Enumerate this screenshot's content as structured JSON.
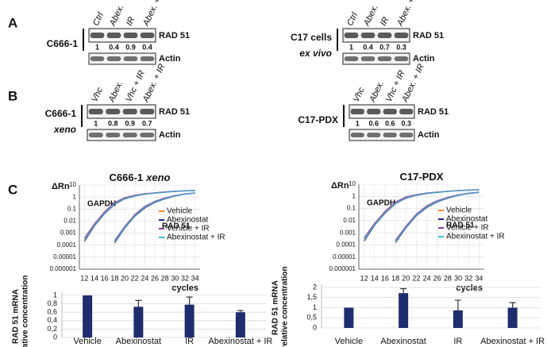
{
  "panel_letters": [
    "A",
    "B",
    "C"
  ],
  "blots": [
    {
      "cell_line": [
        "C666-1"
      ],
      "lanes": [
        "Ctrl",
        "Abex.",
        "IR",
        "Abex. + IR"
      ],
      "quant": [
        1,
        0.4,
        0.9,
        0.4
      ],
      "bands": [
        "RAD 51",
        "Actin"
      ]
    },
    {
      "cell_line": [
        "C17 cells",
        "ex vivo"
      ],
      "lanes": [
        "Ctrl",
        "Abex.",
        "IR",
        "Abex. + IR"
      ],
      "quant": [
        1,
        0.4,
        0.7,
        0.3
      ],
      "bands": [
        "RAD 51",
        "Actin"
      ]
    },
    {
      "cell_line": [
        "C666-1",
        "xeno"
      ],
      "lanes": [
        "Vhc",
        "Abex.",
        "Vhc + IR",
        "Abex. + IR"
      ],
      "quant": [
        1,
        0.8,
        0.9,
        0.7
      ],
      "bands": [
        "RAD 51",
        "Actin"
      ]
    },
    {
      "cell_line": [
        "C17-PDX"
      ],
      "lanes": [
        "Vhc",
        "Abex.",
        "Vhc + IR",
        "Abex. + IR"
      ],
      "quant": [
        1,
        0.6,
        0.6,
        0.3
      ],
      "bands": [
        "RAD 51",
        "Actin"
      ]
    }
  ],
  "chart_data": [
    {
      "type": "line",
      "title": [
        "C666-1",
        "xeno"
      ],
      "xlabel": "cycles",
      "ylabel": "ΔRn",
      "annotations": [
        "GAPDH",
        "RAD 51"
      ],
      "log_y": true,
      "grid": true,
      "x": [
        12,
        14,
        16,
        18,
        20,
        22,
        24,
        26,
        28,
        30,
        32,
        34
      ],
      "xlim": [
        11,
        35
      ],
      "xticks": [
        12,
        14,
        16,
        18,
        20,
        22,
        24,
        26,
        28,
        30,
        32,
        34
      ],
      "ylim": [
        1e-06,
        10
      ],
      "yticks": [
        10,
        1,
        0.1,
        0.01,
        0.001,
        0.0001,
        1e-05,
        1e-06
      ],
      "series": [
        {
          "name": "Vehicle",
          "color": "#f08a24",
          "values": [
            0.0003,
            0.005,
            0.05,
            0.3,
            0.8,
            1.3,
            1.8,
            2.2,
            2.6,
            3,
            3.3,
            3.5
          ]
        },
        {
          "name": "Abexinostat",
          "color": "#1a2a8c",
          "values": [
            0.0002,
            0.004,
            0.04,
            0.25,
            0.7,
            1.2,
            1.7,
            2.1,
            2.5,
            2.9,
            3.2,
            3.4
          ]
        },
        {
          "name": "Vehicle + IR",
          "color": "#8a3a9a",
          "values": [
            0.0004,
            0.006,
            0.06,
            0.35,
            0.9,
            1.4,
            1.9,
            2.3,
            2.7,
            3.1,
            3.4,
            3.6
          ]
        },
        {
          "name": "Abexinostat + IR",
          "color": "#3bb8d8",
          "values": [
            0.0003,
            0.0045,
            0.045,
            0.28,
            0.75,
            1.25,
            1.75,
            2.15,
            2.55,
            2.95,
            3.25,
            3.45
          ]
        },
        {
          "color": "#f08a24",
          "values": [
            null,
            null,
            null,
            0.0002,
            0.003,
            0.03,
            0.15,
            0.4,
            0.8,
            1.3,
            1.8,
            2.2
          ]
        },
        {
          "color": "#1a2a8c",
          "values": [
            null,
            null,
            null,
            0.00015,
            0.0025,
            0.025,
            0.12,
            0.35,
            0.7,
            1.2,
            1.7,
            2.1
          ]
        },
        {
          "color": "#8a3a9a",
          "values": [
            null,
            null,
            null,
            0.00025,
            0.0035,
            0.035,
            0.17,
            0.45,
            0.85,
            1.35,
            1.85,
            2.25
          ]
        },
        {
          "color": "#3bb8d8",
          "values": [
            null,
            null,
            null,
            0.0002,
            0.0028,
            0.028,
            0.14,
            0.38,
            0.75,
            1.25,
            1.75,
            2.15
          ]
        }
      ]
    },
    {
      "type": "line",
      "title": [
        "C17-PDX"
      ],
      "xlabel": "cycles",
      "ylabel": "ΔRn",
      "annotations": [
        "GAPDH",
        "RAD 51"
      ],
      "log_y": true,
      "grid": true,
      "x": [
        12,
        14,
        16,
        18,
        20,
        22,
        24,
        26,
        28,
        30,
        32,
        34
      ],
      "xlim": [
        11,
        35
      ],
      "xticks": [
        12,
        14,
        16,
        18,
        20,
        22,
        24,
        26,
        28,
        30,
        32,
        34
      ],
      "ylim": [
        1e-06,
        10
      ],
      "yticks": [
        10,
        1,
        0.1,
        0.01,
        0.001,
        0.0001,
        1e-05,
        1e-06
      ],
      "series": [
        {
          "name": "Vehicle",
          "color": "#f08a24",
          "values": [
            0.0003,
            0.005,
            0.05,
            0.3,
            0.8,
            1.3,
            1.8,
            2.2,
            2.6,
            3,
            3.3,
            3.5
          ]
        },
        {
          "name": "Abexinostat",
          "color": "#1a2a8c",
          "values": [
            0.0002,
            0.004,
            0.04,
            0.25,
            0.7,
            1.2,
            1.7,
            2.1,
            2.5,
            2.9,
            3.2,
            3.4
          ]
        },
        {
          "name": "Vehicle + IR",
          "color": "#8a3a9a",
          "values": [
            0.0004,
            0.006,
            0.06,
            0.35,
            0.9,
            1.4,
            1.9,
            2.3,
            2.7,
            3.1,
            3.4,
            3.6
          ]
        },
        {
          "name": "Abexinostat + IR",
          "color": "#3bb8d8",
          "values": [
            0.0003,
            0.0045,
            0.045,
            0.28,
            0.75,
            1.25,
            1.75,
            2.15,
            2.55,
            2.95,
            3.25,
            3.45
          ]
        },
        {
          "color": "#f08a24",
          "values": [
            null,
            null,
            null,
            0.0002,
            0.003,
            0.03,
            0.15,
            0.4,
            0.8,
            1.3,
            1.8,
            2.2
          ]
        },
        {
          "color": "#1a2a8c",
          "values": [
            null,
            null,
            null,
            0.00015,
            0.0025,
            0.025,
            0.12,
            0.35,
            0.7,
            1.2,
            1.7,
            2.1
          ]
        },
        {
          "color": "#8a3a9a",
          "values": [
            null,
            null,
            null,
            0.00025,
            0.0035,
            0.035,
            0.17,
            0.45,
            0.85,
            1.35,
            1.85,
            2.25
          ]
        },
        {
          "color": "#3bb8d8",
          "values": [
            null,
            null,
            null,
            0.0002,
            0.0028,
            0.028,
            0.14,
            0.38,
            0.75,
            1.25,
            1.75,
            2.15
          ]
        }
      ]
    },
    {
      "type": "bar",
      "ylabel": [
        "RAD 51 mRNA",
        "relative concentration"
      ],
      "grid": true,
      "color": "#1f2d6e",
      "categories": [
        "Vehicle",
        "Abexinostat",
        "IR",
        "Abexinostat + IR"
      ],
      "values": [
        1,
        0.73,
        0.78,
        0.6
      ],
      "errors": [
        null,
        0.15,
        0.18,
        0.04
      ],
      "ylim": [
        0,
        1
      ],
      "yticks": [
        0,
        {
          "value": 0.2,
          "label": "0,2"
        },
        {
          "value": 0.4,
          "label": "0,4"
        },
        {
          "value": 0.6,
          "label": "0,6"
        },
        {
          "value": 0.8,
          "label": "0,8"
        },
        1
      ]
    },
    {
      "type": "bar",
      "ylabel": [
        "RAD 51 mRNA",
        "relative concentration"
      ],
      "grid": true,
      "color": "#1f2d6e",
      "categories": [
        "Vehicle",
        "Abexinostat",
        "IR",
        "Abexinostat + IR"
      ],
      "values": [
        1,
        1.72,
        0.87,
        1.0
      ],
      "errors": [
        null,
        0.22,
        0.5,
        0.25
      ],
      "ylim": [
        0,
        2
      ],
      "yticks": [
        0,
        {
          "value": 0.5,
          "label": "0,5"
        },
        1,
        {
          "value": 1.5,
          "label": "1,5"
        },
        2
      ]
    }
  ]
}
